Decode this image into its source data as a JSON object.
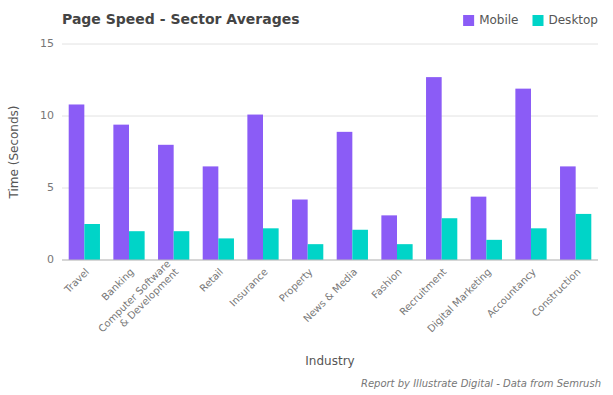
{
  "chart_data": {
    "type": "bar",
    "title": "Page Speed - Sector Averages",
    "xlabel": "Industry",
    "ylabel": "Time (Seconds)",
    "annotations": [
      "Report by Illustrate Digital - Data from Semrush"
    ],
    "categories": [
      "Travel",
      "Banking",
      "Computer Software\n& Development",
      "Retail",
      "Insurance",
      "Property",
      "News & Media",
      "Fashion",
      "Recruitment",
      "Digital Marketing",
      "Accountancy",
      "Construction"
    ],
    "series": [
      {
        "name": "Mobile",
        "color": "#8B5CF6",
        "values": [
          10.8,
          9.4,
          8.0,
          6.5,
          10.1,
          4.2,
          8.9,
          3.1,
          12.7,
          4.4,
          11.9,
          6.5
        ]
      },
      {
        "name": "Desktop",
        "color": "#00D4C8",
        "values": [
          2.5,
          2.0,
          2.0,
          1.5,
          2.2,
          1.1,
          2.1,
          1.1,
          2.9,
          1.4,
          2.2,
          3.2
        ]
      }
    ],
    "ylim": [
      0,
      15
    ],
    "yticks": [
      0,
      5,
      10,
      15
    ],
    "grid": true,
    "legend": "top-right"
  }
}
